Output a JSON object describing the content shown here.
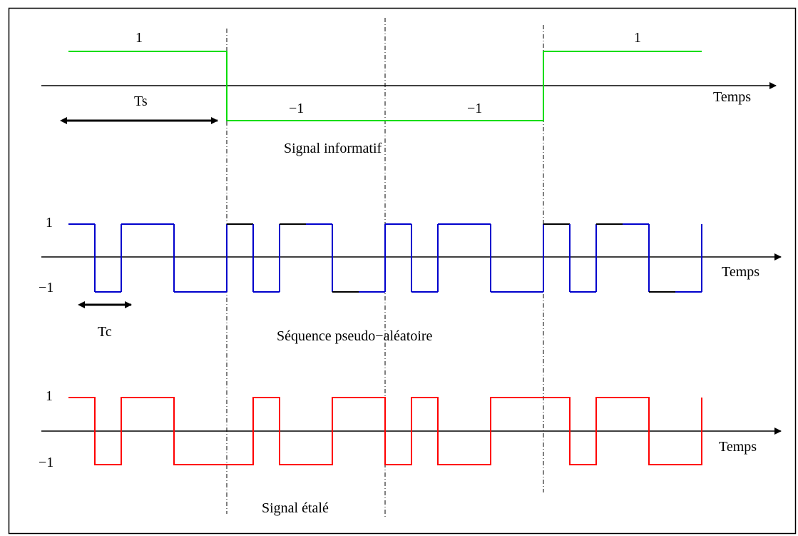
{
  "texts": {
    "info_one_left": "1",
    "info_one_right": "1",
    "info_minus_one_a": "−1",
    "info_minus_one_b": "−1",
    "ts": "Ts",
    "temps_1": "Temps",
    "signal_informatif": "Signal informatif",
    "pn_one": "1",
    "pn_minus_one": "−1",
    "temps_2": "Temps",
    "tc": "Tc",
    "sequence_pseudo_aleatoire": "Séquence pseudo−aléatoire",
    "spread_one": "1",
    "spread_minus_one": "−1",
    "temps_3": "Temps",
    "signal_etale": "Signal étalé"
  },
  "colors": {
    "informative_signal": "#00dd00",
    "pn_sequence": "#0000cc",
    "pn_highlight": "#000000",
    "spread_signal": "#ff0000",
    "axis": "#000000"
  },
  "signals": {
    "informative_bits": [
      1,
      -1,
      -1,
      1
    ],
    "pn_chips": [
      1,
      -1,
      1,
      1,
      -1,
      -1,
      1,
      -1,
      1,
      1,
      -1,
      -1,
      1,
      -1,
      1,
      1,
      -1,
      -1,
      1,
      -1,
      1,
      1,
      -1,
      -1
    ],
    "chips_per_bit": 6
  }
}
